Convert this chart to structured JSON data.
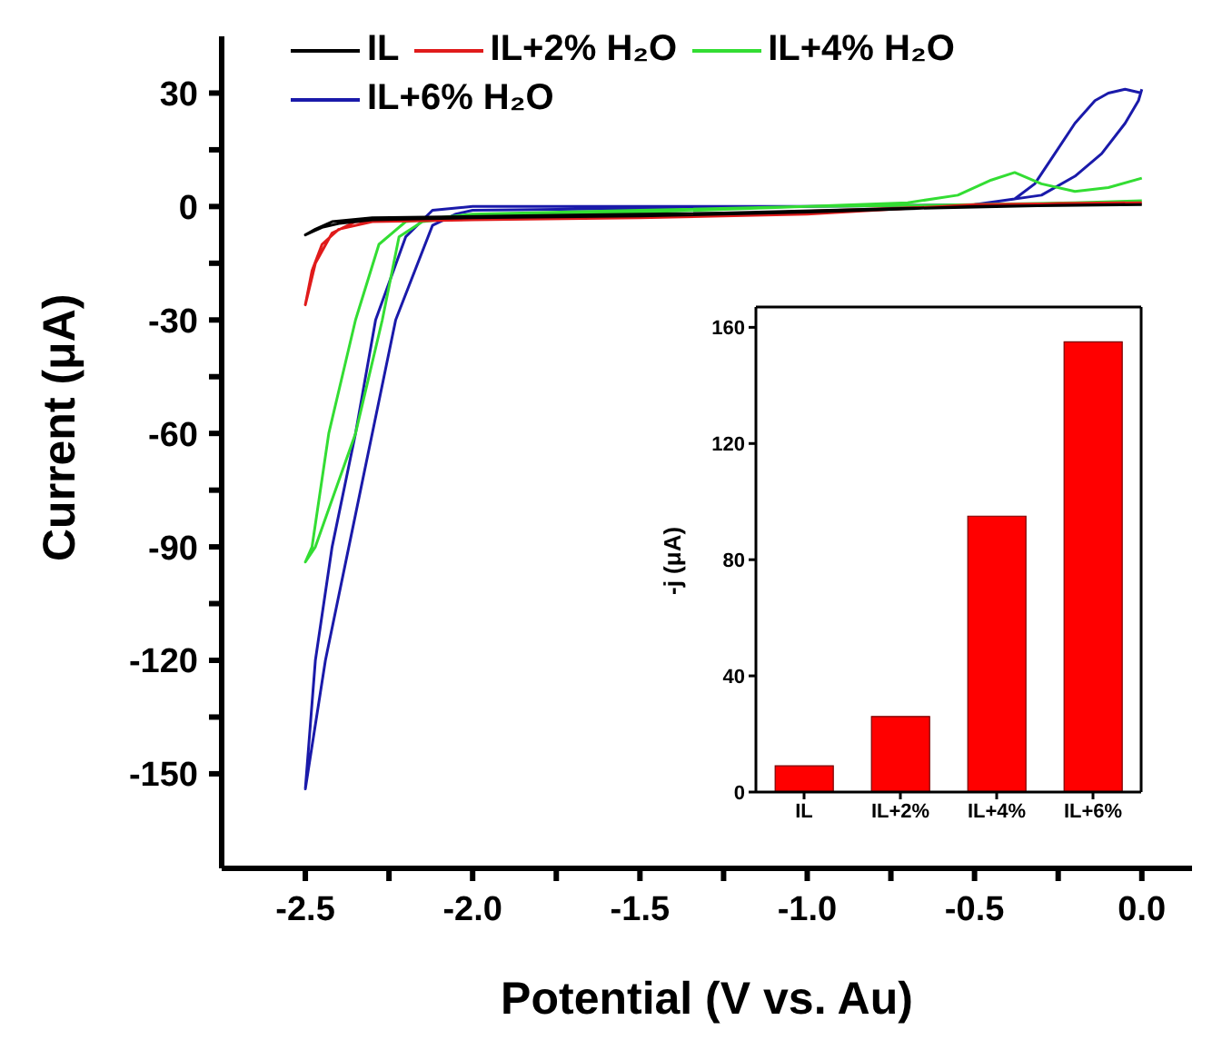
{
  "chart_data": [
    {
      "type": "line",
      "xlabel": "Potential (V vs. Au)",
      "ylabel": "Current (μA)",
      "legend": "top left",
      "line_style": "solid",
      "xlim": [
        -2.75,
        0.15
      ],
      "ylim": [
        -175,
        45
      ],
      "xticks": [
        -2.5,
        {
          "value": -2.25,
          "label": null
        },
        {
          "value": -2,
          "label": "-2.0"
        },
        {
          "value": -1.75,
          "label": null
        },
        -1.5,
        {
          "value": -1.25,
          "label": null
        },
        {
          "value": -1,
          "label": "-1.0"
        },
        {
          "value": -0.75,
          "label": null
        },
        -0.5,
        {
          "value": -0.25,
          "label": null
        },
        {
          "value": 0,
          "label": "0.0"
        }
      ],
      "yticks": [
        -150,
        {
          "value": -135,
          "label": null
        },
        -120,
        {
          "value": -105,
          "label": null
        },
        -90,
        {
          "value": -75,
          "label": null
        },
        -60,
        {
          "value": -45,
          "label": null
        },
        -30,
        {
          "value": -15,
          "label": null
        },
        0,
        {
          "value": 15,
          "label": null
        },
        30
      ],
      "series": [
        {
          "name": "IL",
          "color": "#000000",
          "x": [
            0,
            -0.5,
            -1.0,
            -1.5,
            -2.0,
            -2.3,
            -2.4,
            -2.45,
            -2.5,
            -2.47,
            -2.42,
            -2.3,
            -1.75,
            -1.25,
            -0.75,
            -0.25,
            -0.05
          ],
          "values": [
            0.5,
            0,
            -1.5,
            -2.5,
            -3,
            -3.5,
            -4.5,
            -5.5,
            -7.5,
            -6,
            -4,
            -3,
            -2.3,
            -1.7,
            -0.6,
            0.3,
            0.5
          ]
        },
        {
          "name": "IL+2% H₂O",
          "color": "#e01b1b",
          "x": [
            0,
            -0.5,
            -1.0,
            -1.5,
            -2.0,
            -2.3,
            -2.4,
            -2.45,
            -2.48,
            -2.5,
            -2.47,
            -2.42,
            -2.35,
            -1.75,
            -1.25,
            -0.75,
            -0.25,
            -0.05
          ],
          "values": [
            1,
            0.5,
            -2,
            -3,
            -3.5,
            -4,
            -6,
            -10,
            -17,
            -26,
            -15,
            -7,
            -4,
            -2.8,
            -2,
            -0.5,
            0.8,
            1
          ]
        },
        {
          "name": "IL+4% H₂O",
          "color": "#33dd33",
          "x": [
            0,
            -0.1,
            -0.2,
            -0.3,
            -0.38,
            -0.45,
            -0.55,
            -0.7,
            -1.0,
            -1.5,
            -2.0,
            -2.15,
            -2.22,
            -2.27,
            -2.35,
            -2.47,
            -2.5,
            -2.48,
            -2.43,
            -2.35,
            -2.28,
            -2.2,
            -2.0,
            -1.5,
            -1.0,
            -0.5,
            -0.2,
            0
          ],
          "values": [
            7.5,
            5,
            4,
            6,
            9,
            7,
            3,
            1,
            0,
            -1.5,
            -2.5,
            -4,
            -8,
            -30,
            -60,
            -90,
            -94,
            -90,
            -60,
            -30,
            -10,
            -4,
            -2,
            -1,
            0,
            0.5,
            1,
            1.5
          ]
        },
        {
          "name": "IL+6% H₂O",
          "color": "#1a1aaa",
          "x": [
            0,
            -0.05,
            -0.1,
            -0.14,
            -0.2,
            -0.26,
            -0.32,
            -0.38,
            -0.5,
            -1.0,
            -1.5,
            -2.0,
            -2.05,
            -2.12,
            -2.23,
            -2.3,
            -2.37,
            -2.44,
            -2.5,
            -2.47,
            -2.42,
            -2.35,
            -2.29,
            -2.2,
            -2.12,
            -2.0,
            -1.5,
            -1.0,
            -0.5,
            -0.3,
            -0.2,
            -0.12,
            -0.05,
            -0.01,
            0
          ],
          "values": [
            30,
            31,
            30,
            28,
            22,
            14,
            6,
            2,
            0.5,
            0,
            -0.5,
            -1,
            -2,
            -5,
            -30,
            -60,
            -90,
            -120,
            -154,
            -120,
            -90,
            -60,
            -30,
            -8,
            -1,
            0,
            0,
            0,
            0.5,
            3,
            8,
            14,
            22,
            28,
            31
          ]
        }
      ]
    },
    {
      "type": "bar",
      "ylabel": "-j (μA)",
      "categories": [
        "IL",
        "IL+2%",
        "IL+4%",
        "IL+6%"
      ],
      "values": [
        9,
        26,
        95,
        155
      ],
      "color": "#ff0000",
      "ylim": [
        0,
        167
      ],
      "yticks": [
        0,
        40,
        80,
        120,
        160
      ]
    }
  ]
}
